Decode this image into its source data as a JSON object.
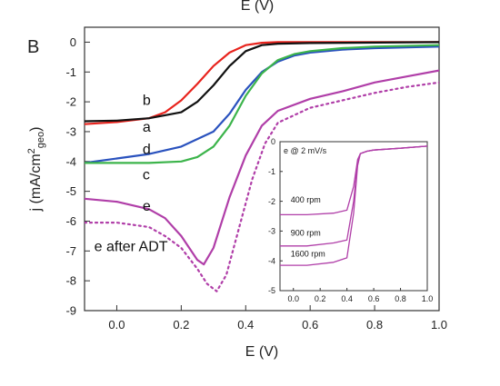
{
  "page": {
    "top_label": "E (V)"
  },
  "chart_data": [
    {
      "id": "main",
      "type": "line",
      "panel_label": "B",
      "xlabel": "E (V)",
      "ylabel": "j (mA/cm",
      "ylabel_sup": "2",
      "ylabel_sub": "geo",
      "ylabel_close": ")",
      "xlim": [
        -0.1,
        1.0
      ],
      "ylim": [
        -9,
        0.5
      ],
      "xticks": [
        0.0,
        0.2,
        0.4,
        0.6,
        0.8,
        1.0
      ],
      "xtick_labels": [
        "0.0",
        "0.2",
        "0.4",
        "0.6",
        "0.8",
        "1.0"
      ],
      "yticks": [
        0,
        -1,
        -2,
        -3,
        -4,
        -5,
        -6,
        -7,
        -8,
        -9
      ],
      "ytick_labels": [
        "0",
        "-1",
        "-2",
        "-3",
        "-4",
        "-5",
        "-6",
        "-7",
        "-8",
        "-9"
      ],
      "grid": false,
      "series": [
        {
          "name": "b",
          "color": "#e8231d",
          "style": "solid",
          "x": [
            -0.1,
            0.0,
            0.1,
            0.15,
            0.2,
            0.25,
            0.3,
            0.35,
            0.4,
            0.45,
            0.5,
            1.0
          ],
          "y": [
            -2.75,
            -2.68,
            -2.55,
            -2.35,
            -1.95,
            -1.4,
            -0.8,
            -0.35,
            -0.1,
            -0.02,
            0.0,
            0.0
          ]
        },
        {
          "name": "a",
          "color": "#111111",
          "style": "solid",
          "x": [
            -0.1,
            0.0,
            0.1,
            0.2,
            0.25,
            0.3,
            0.35,
            0.4,
            0.45,
            0.5,
            0.6,
            1.0
          ],
          "y": [
            -2.65,
            -2.63,
            -2.55,
            -2.35,
            -2.0,
            -1.45,
            -0.8,
            -0.3,
            -0.1,
            -0.05,
            -0.03,
            0.0
          ]
        },
        {
          "name": "d",
          "color": "#2a52be",
          "style": "solid",
          "x": [
            -0.1,
            0.0,
            0.1,
            0.2,
            0.3,
            0.35,
            0.4,
            0.45,
            0.5,
            0.55,
            0.6,
            0.7,
            0.8,
            1.0
          ],
          "y": [
            -4.05,
            -3.9,
            -3.75,
            -3.5,
            -3.0,
            -2.4,
            -1.6,
            -1.0,
            -0.65,
            -0.45,
            -0.35,
            -0.25,
            -0.2,
            -0.15
          ]
        },
        {
          "name": "c",
          "color": "#3cb44b",
          "style": "solid",
          "x": [
            -0.1,
            0.0,
            0.1,
            0.2,
            0.25,
            0.3,
            0.35,
            0.4,
            0.45,
            0.5,
            0.55,
            0.6,
            0.7,
            0.8,
            1.0
          ],
          "y": [
            -4.05,
            -4.05,
            -4.05,
            -4.0,
            -3.85,
            -3.5,
            -2.8,
            -1.8,
            -1.05,
            -0.6,
            -0.4,
            -0.3,
            -0.2,
            -0.15,
            -0.1
          ]
        },
        {
          "name": "e",
          "color": "#b03ea8",
          "style": "solid",
          "x": [
            -0.1,
            0.0,
            0.1,
            0.15,
            0.2,
            0.25,
            0.27,
            0.3,
            0.35,
            0.4,
            0.45,
            0.5,
            0.6,
            0.7,
            0.8,
            0.9,
            1.0
          ],
          "y": [
            -5.25,
            -5.35,
            -5.6,
            -5.9,
            -6.5,
            -7.3,
            -7.45,
            -6.9,
            -5.2,
            -3.8,
            -2.8,
            -2.3,
            -1.9,
            -1.65,
            -1.35,
            -1.15,
            -0.95
          ]
        },
        {
          "name": "e after ADT",
          "color": "#b03ea8",
          "style": "dotted",
          "x": [
            -0.1,
            0.0,
            0.1,
            0.15,
            0.2,
            0.25,
            0.28,
            0.31,
            0.34,
            0.38,
            0.42,
            0.46,
            0.5,
            0.6,
            0.7,
            0.8,
            0.9,
            1.0
          ],
          "y": [
            -6.05,
            -6.05,
            -6.2,
            -6.5,
            -6.9,
            -7.6,
            -8.1,
            -8.35,
            -7.8,
            -6.2,
            -4.6,
            -3.4,
            -2.7,
            -2.2,
            -1.95,
            -1.7,
            -1.5,
            -1.35
          ]
        }
      ],
      "annotations": [
        {
          "text": "b",
          "x": 0.08,
          "y": -2.1
        },
        {
          "text": "a",
          "x": 0.08,
          "y": -3.0
        },
        {
          "text": "d",
          "x": 0.08,
          "y": -3.75
        },
        {
          "text": "c",
          "x": 0.08,
          "y": -4.6
        },
        {
          "text": "e",
          "x": 0.08,
          "y": -5.65
        },
        {
          "text": "e after ADT",
          "x": -0.07,
          "y": -7.0
        }
      ]
    },
    {
      "id": "inset",
      "type": "line",
      "title": "e @ 2 mV/s",
      "xlim": [
        -0.1,
        1.0
      ],
      "ylim": [
        -5,
        0
      ],
      "xticks": [
        0.0,
        0.2,
        0.4,
        0.6,
        0.8,
        1.0
      ],
      "xtick_labels": [
        "0.0",
        "0.2",
        "0.4",
        "0.6",
        "0.8",
        "1.0"
      ],
      "yticks": [
        0,
        -1,
        -2,
        -3,
        -4,
        -5
      ],
      "ytick_labels": [
        "0",
        "-1",
        "-2",
        "-3",
        "-4",
        "-5"
      ],
      "grid": false,
      "series": [
        {
          "name": "400 rpm",
          "color": "#b03ea8",
          "style": "solid",
          "x": [
            -0.1,
            0.1,
            0.3,
            0.4,
            0.45,
            0.48,
            0.5,
            0.55,
            0.6,
            0.8,
            1.0
          ],
          "y": [
            -2.45,
            -2.45,
            -2.4,
            -2.3,
            -1.5,
            -0.6,
            -0.4,
            -0.32,
            -0.28,
            -0.22,
            -0.15
          ]
        },
        {
          "name": "900 rpm",
          "color": "#b03ea8",
          "style": "solid",
          "x": [
            -0.1,
            0.1,
            0.3,
            0.4,
            0.45,
            0.48,
            0.5,
            0.55,
            0.6,
            0.8,
            1.0
          ],
          "y": [
            -3.5,
            -3.5,
            -3.4,
            -3.3,
            -2.0,
            -0.7,
            -0.4,
            -0.32,
            -0.28,
            -0.22,
            -0.15
          ]
        },
        {
          "name": "1600 rpm",
          "color": "#b03ea8",
          "style": "solid",
          "x": [
            -0.1,
            0.1,
            0.3,
            0.4,
            0.45,
            0.48,
            0.5,
            0.55,
            0.6,
            0.8,
            1.0
          ],
          "y": [
            -4.15,
            -4.15,
            -4.05,
            -3.9,
            -2.4,
            -0.8,
            -0.4,
            -0.32,
            -0.28,
            -0.22,
            -0.15
          ]
        }
      ],
      "annotations": [
        {
          "text": "400 rpm",
          "x": -0.02,
          "y": -2.05
        },
        {
          "text": "900 rpm",
          "x": -0.02,
          "y": -3.15
        },
        {
          "text": "1600 rpm",
          "x": -0.02,
          "y": -3.85
        }
      ]
    }
  ]
}
